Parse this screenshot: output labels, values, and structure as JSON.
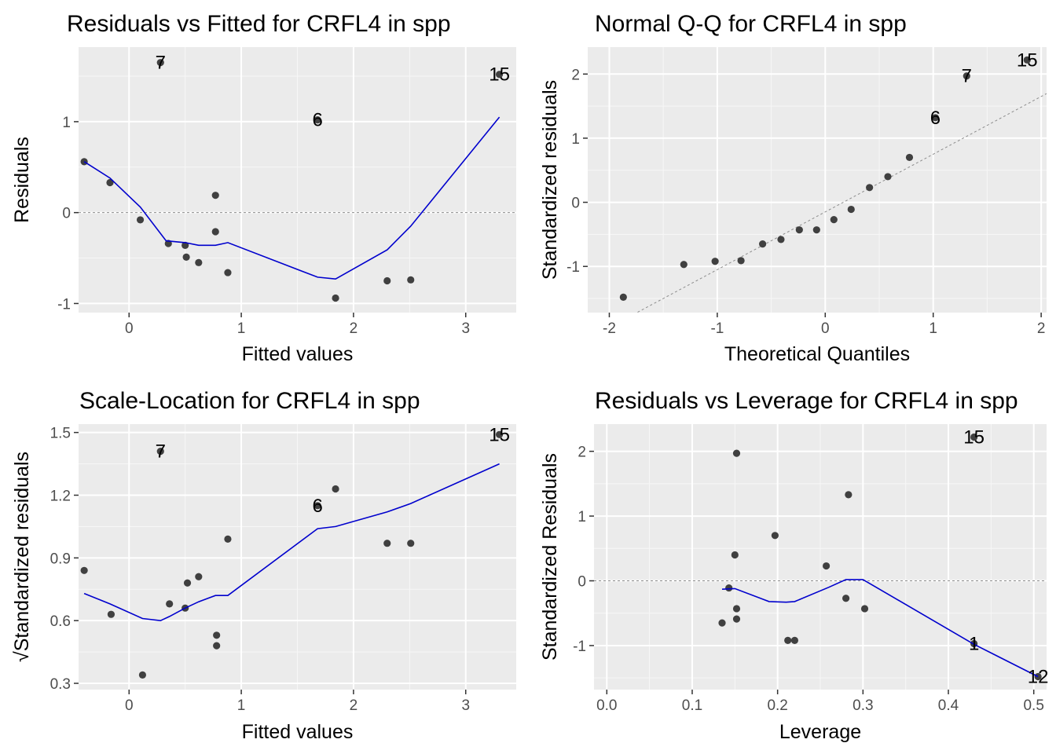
{
  "chart_data": [
    {
      "type": "scatter",
      "title": "Residuals vs Fitted for CRFL4 in spp",
      "xlabel": "Fitted values",
      "ylabel": "Residuals",
      "xlim": [
        -0.45,
        3.45
      ],
      "ylim": [
        -1.1,
        1.82
      ],
      "x_ticks": [
        0,
        1,
        2,
        3
      ],
      "y_ticks": [
        -1,
        0,
        1
      ],
      "x_tick_labels": [
        "0",
        "1",
        "2",
        "3"
      ],
      "y_tick_labels": [
        "-1",
        "0",
        "1"
      ],
      "reference_line_y": 0,
      "points": [
        {
          "x": -0.4,
          "y": 0.56
        },
        {
          "x": -0.17,
          "y": 0.33
        },
        {
          "x": 0.1,
          "y": -0.08
        },
        {
          "x": 0.35,
          "y": -0.34
        },
        {
          "x": 0.5,
          "y": -0.36
        },
        {
          "x": 0.51,
          "y": -0.49
        },
        {
          "x": 0.62,
          "y": -0.55
        },
        {
          "x": 0.77,
          "y": 0.19
        },
        {
          "x": 0.77,
          "y": -0.21
        },
        {
          "x": 0.88,
          "y": -0.66
        },
        {
          "x": 1.84,
          "y": -0.94
        },
        {
          "x": 2.3,
          "y": -0.75
        },
        {
          "x": 2.51,
          "y": -0.74
        },
        {
          "x": 0.28,
          "y": 1.65,
          "label": "7"
        },
        {
          "x": 1.68,
          "y": 1.02,
          "label": "6"
        },
        {
          "x": 3.3,
          "y": 1.52,
          "label": "15"
        }
      ],
      "smooth_line": {
        "color": "#0000cd",
        "x": [
          -0.4,
          -0.17,
          0.1,
          0.33,
          0.5,
          0.62,
          0.77,
          0.88,
          1.68,
          1.84,
          2.3,
          2.51,
          3.3
        ],
        "y": [
          0.56,
          0.38,
          0.06,
          -0.31,
          -0.33,
          -0.36,
          -0.36,
          -0.33,
          -0.71,
          -0.73,
          -0.41,
          -0.15,
          1.05
        ]
      }
    },
    {
      "type": "scatter",
      "title": "Normal Q-Q for CRFL4 in spp",
      "xlabel": "Theoretical Quantiles",
      "ylabel": "Standardized residuals",
      "xlim": [
        -2.2,
        2.05
      ],
      "ylim": [
        -1.72,
        2.42
      ],
      "x_ticks": [
        -2,
        -1,
        0,
        1,
        2
      ],
      "y_ticks": [
        -1,
        0,
        1,
        2
      ],
      "x_tick_labels": [
        "-2",
        "-1",
        "0",
        "1",
        "2"
      ],
      "y_tick_labels": [
        "-1",
        "0",
        "1",
        "2"
      ],
      "reference_line": {
        "intercept": -0.15,
        "slope": 0.9
      },
      "points": [
        {
          "x": -1.87,
          "y": -1.48
        },
        {
          "x": -1.31,
          "y": -0.97
        },
        {
          "x": -1.02,
          "y": -0.92
        },
        {
          "x": -0.78,
          "y": -0.91
        },
        {
          "x": -0.58,
          "y": -0.65
        },
        {
          "x": -0.41,
          "y": -0.58
        },
        {
          "x": -0.24,
          "y": -0.43
        },
        {
          "x": -0.08,
          "y": -0.43
        },
        {
          "x": 0.08,
          "y": -0.27
        },
        {
          "x": 0.24,
          "y": -0.11
        },
        {
          "x": 0.41,
          "y": 0.23
        },
        {
          "x": 0.58,
          "y": 0.4
        },
        {
          "x": 0.78,
          "y": 0.7
        },
        {
          "x": 1.02,
          "y": 1.32,
          "label": "6"
        },
        {
          "x": 1.31,
          "y": 1.97,
          "label": "7"
        },
        {
          "x": 1.87,
          "y": 2.22,
          "label": "15"
        }
      ]
    },
    {
      "type": "scatter",
      "title": "Scale-Location for CRFL4 in spp",
      "xlabel": "Fitted values",
      "ylabel": "√Standardized residuals",
      "xlim": [
        -0.45,
        3.45
      ],
      "ylim": [
        0.27,
        1.54
      ],
      "x_ticks": [
        0,
        1,
        2,
        3
      ],
      "y_ticks": [
        0.3,
        0.6,
        0.9,
        1.2,
        1.5
      ],
      "x_tick_labels": [
        "0",
        "1",
        "2",
        "3"
      ],
      "y_tick_labels": [
        "0.3",
        "0.6",
        "0.9",
        "1.2",
        "1.5"
      ],
      "points": [
        {
          "x": -0.4,
          "y": 0.84
        },
        {
          "x": -0.16,
          "y": 0.63
        },
        {
          "x": 0.12,
          "y": 0.34
        },
        {
          "x": 0.36,
          "y": 0.68
        },
        {
          "x": 0.5,
          "y": 0.66
        },
        {
          "x": 0.52,
          "y": 0.78
        },
        {
          "x": 0.62,
          "y": 0.81
        },
        {
          "x": 0.78,
          "y": 0.53
        },
        {
          "x": 0.78,
          "y": 0.48
        },
        {
          "x": 0.88,
          "y": 0.99
        },
        {
          "x": 1.84,
          "y": 1.23
        },
        {
          "x": 2.3,
          "y": 0.97
        },
        {
          "x": 2.51,
          "y": 0.97
        },
        {
          "x": 0.28,
          "y": 1.41,
          "label": "7"
        },
        {
          "x": 1.68,
          "y": 1.15,
          "label": "6"
        },
        {
          "x": 3.3,
          "y": 1.49,
          "label": "15"
        }
      ],
      "smooth_line": {
        "color": "#0000cd",
        "x": [
          -0.4,
          -0.17,
          0.12,
          0.28,
          0.36,
          0.5,
          0.62,
          0.77,
          0.88,
          1.68,
          1.84,
          2.3,
          2.51,
          3.3
        ],
        "y": [
          0.73,
          0.68,
          0.61,
          0.6,
          0.62,
          0.66,
          0.69,
          0.72,
          0.72,
          1.04,
          1.05,
          1.12,
          1.16,
          1.35
        ]
      }
    },
    {
      "type": "scatter",
      "title": "Residuals vs Leverage for CRFL4 in spp",
      "xlabel": "Leverage",
      "ylabel": "Standardized Residuals",
      "xlim": [
        -0.015,
        0.515
      ],
      "ylim": [
        -1.68,
        2.42
      ],
      "x_ticks": [
        0.0,
        0.1,
        0.2,
        0.3,
        0.4,
        0.5
      ],
      "y_ticks": [
        -1,
        0,
        1,
        2
      ],
      "x_tick_labels": [
        "0.0",
        "0.1",
        "0.2",
        "0.3",
        "0.4",
        "0.5"
      ],
      "y_tick_labels": [
        "-1",
        "0",
        "1",
        "2"
      ],
      "reference_line_y": 0,
      "points": [
        {
          "x": 0.135,
          "y": -0.65
        },
        {
          "x": 0.143,
          "y": -0.11
        },
        {
          "x": 0.15,
          "y": 0.4
        },
        {
          "x": 0.152,
          "y": 1.97
        },
        {
          "x": 0.152,
          "y": -0.43
        },
        {
          "x": 0.152,
          "y": -0.59
        },
        {
          "x": 0.197,
          "y": 0.7
        },
        {
          "x": 0.212,
          "y": -0.92
        },
        {
          "x": 0.22,
          "y": -0.92
        },
        {
          "x": 0.257,
          "y": 0.23
        },
        {
          "x": 0.28,
          "y": -0.27
        },
        {
          "x": 0.283,
          "y": 1.33
        },
        {
          "x": 0.302,
          "y": -0.43
        },
        {
          "x": 0.43,
          "y": 2.22,
          "label": "15"
        },
        {
          "x": 0.43,
          "y": -0.97,
          "label": "1"
        },
        {
          "x": 0.505,
          "y": -1.48,
          "label": "12"
        }
      ],
      "smooth_line": {
        "color": "#0000cd",
        "x": [
          0.135,
          0.15,
          0.19,
          0.21,
          0.22,
          0.26,
          0.28,
          0.3,
          0.43,
          0.505
        ],
        "y": [
          -0.13,
          -0.12,
          -0.32,
          -0.33,
          -0.32,
          -0.1,
          0.02,
          0.02,
          -0.98,
          -1.48
        ]
      }
    }
  ]
}
